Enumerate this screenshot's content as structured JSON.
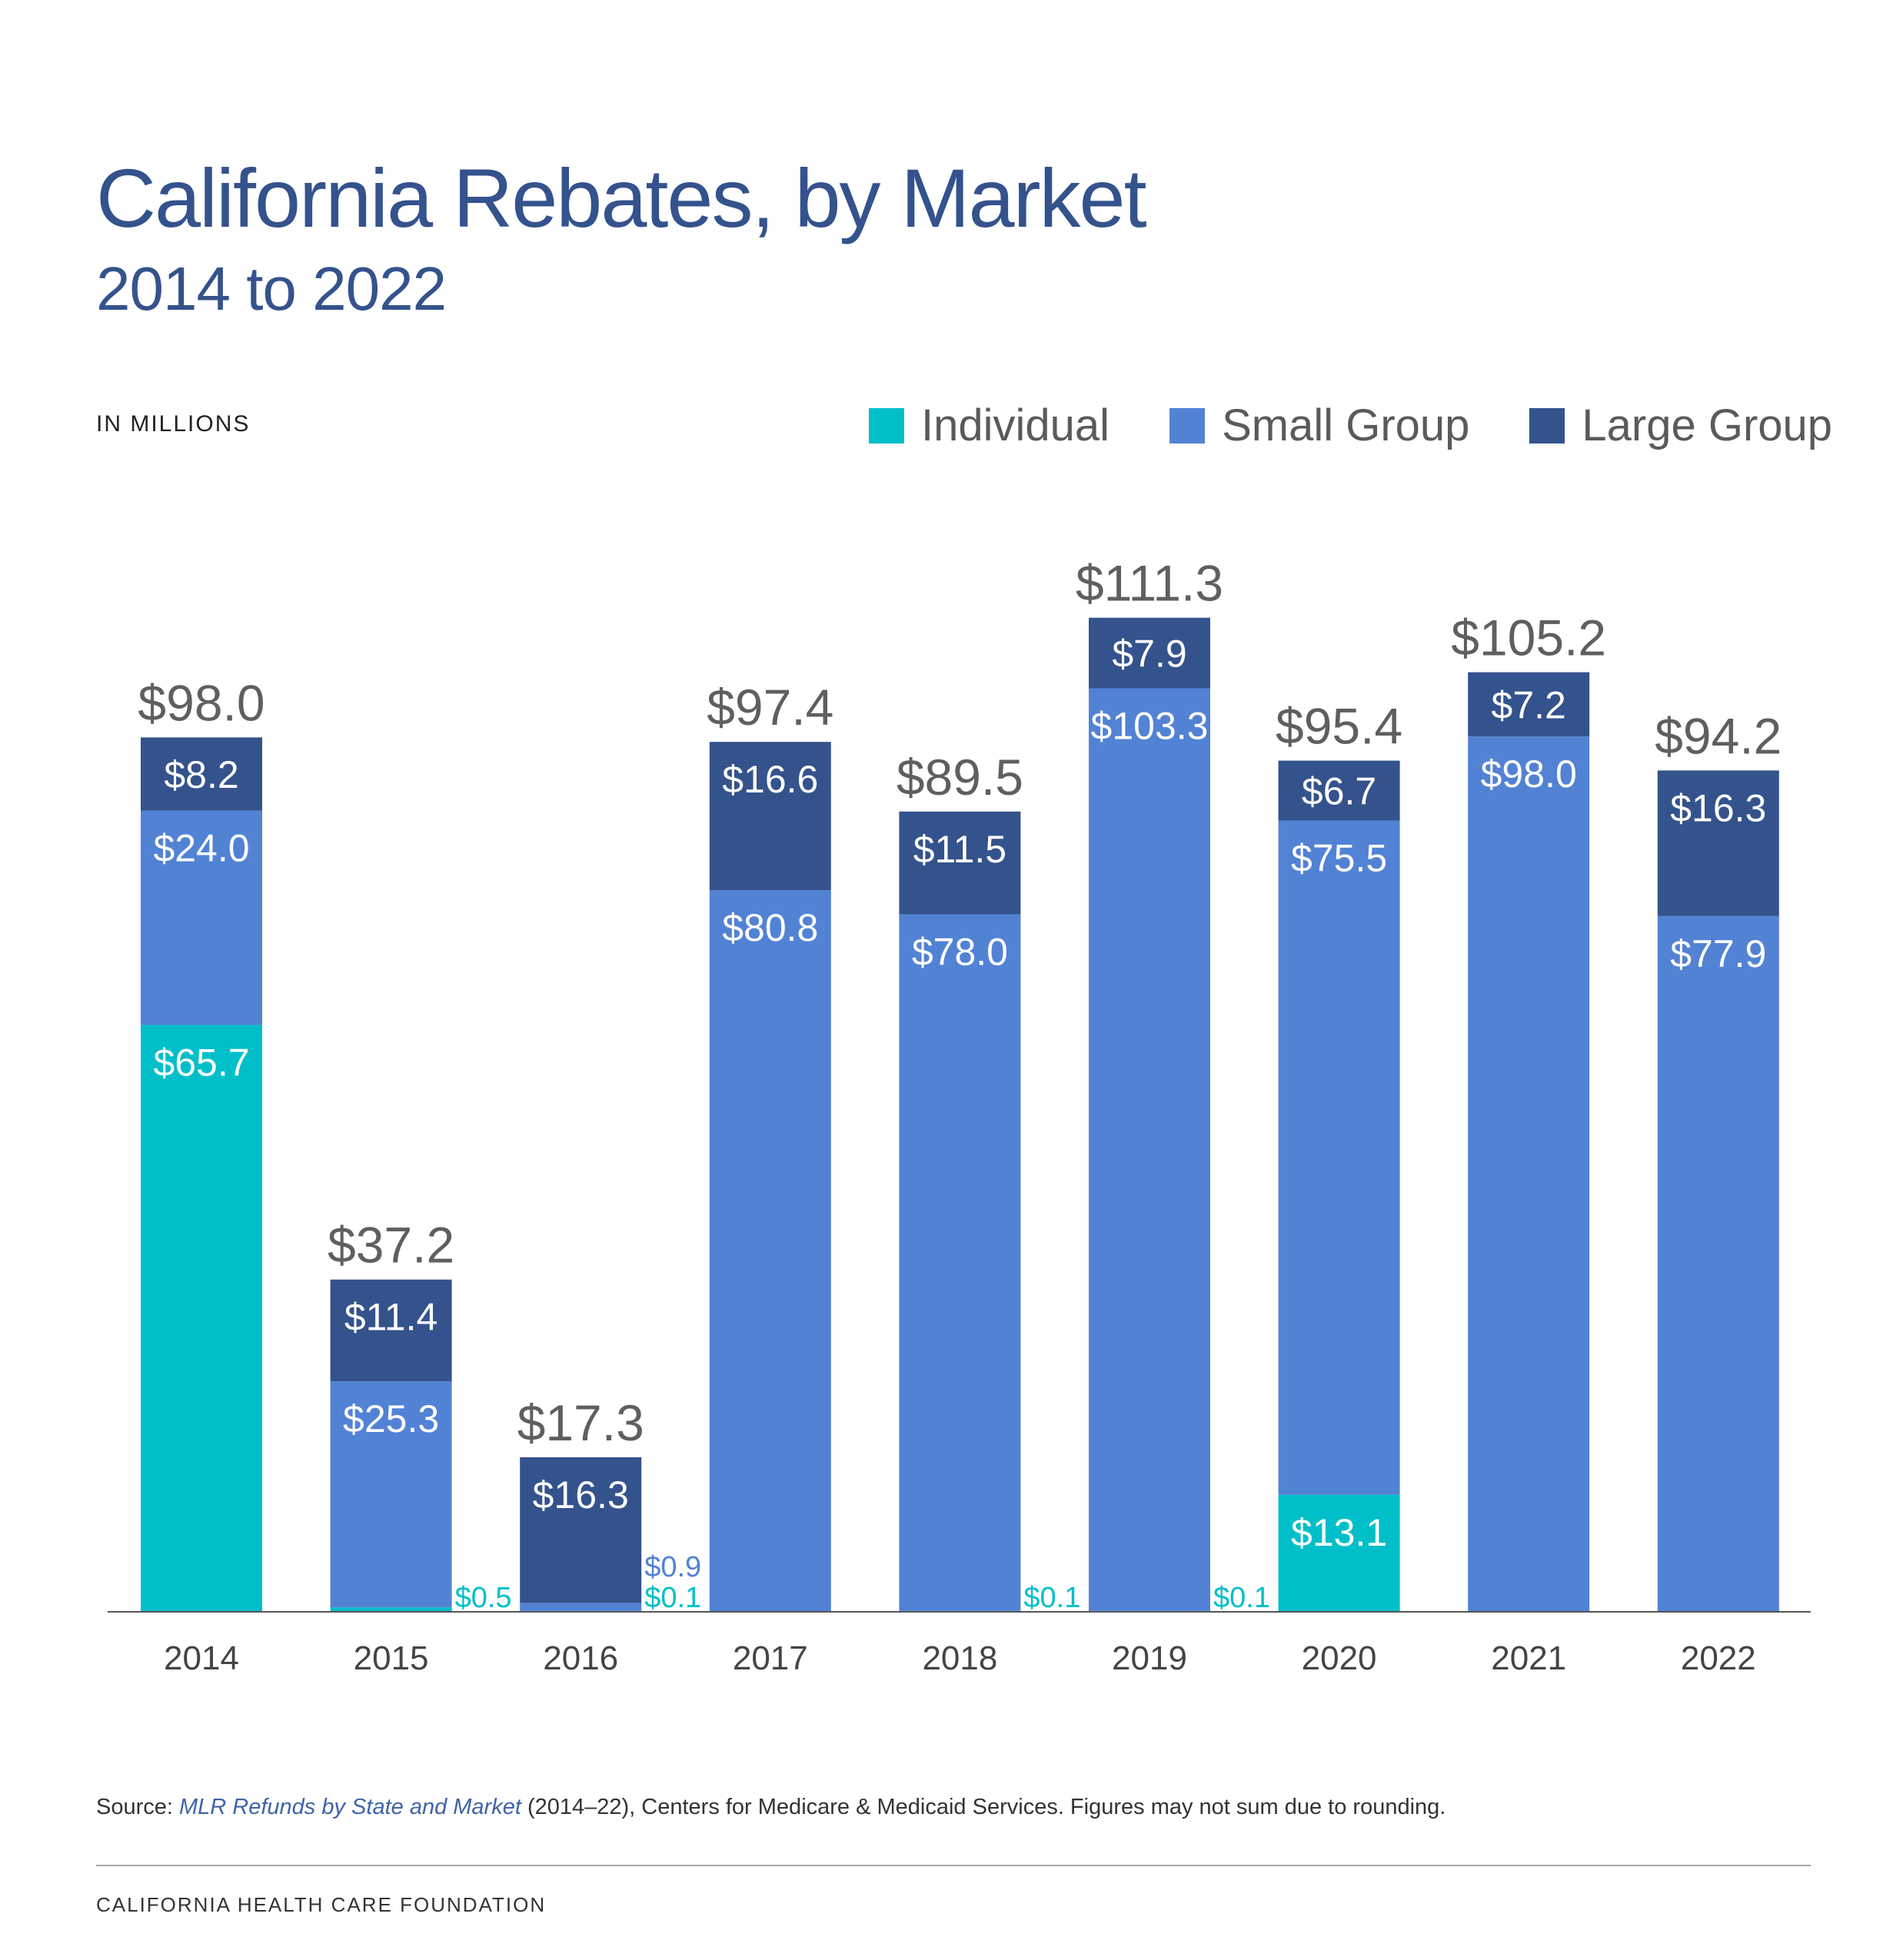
{
  "title": "California Rebates, by Market",
  "subtitle": "2014 to 2022",
  "units_label": "IN MILLIONS",
  "legend": [
    {
      "name": "Individual",
      "color": "#00bfc9"
    },
    {
      "name": "Small Group",
      "color": "#5282d4"
    },
    {
      "name": "Large Group",
      "color": "#34528c"
    }
  ],
  "source": {
    "prefix": "Source: ",
    "citation": "MLR Refunds by State and Market",
    "suffix": " (2014–22), Centers for Medicare & Medicaid Services. Figures may not sum due to rounding."
  },
  "footer": "CALIFORNIA HEALTH CARE FOUNDATION",
  "colors": {
    "individual": "#00bfc9",
    "small_group": "#5282d4",
    "large_group": "#34528c",
    "total_label": "#5f5f5f",
    "axis": "#555555"
  },
  "chart_data": {
    "type": "bar",
    "stacked": true,
    "categories": [
      "2014",
      "2015",
      "2016",
      "2017",
      "2018",
      "2019",
      "2020",
      "2021",
      "2022"
    ],
    "series": [
      {
        "name": "Individual",
        "values": [
          65.7,
          0.5,
          0.1,
          0,
          0.1,
          0.1,
          13.1,
          0,
          0
        ]
      },
      {
        "name": "Small Group",
        "values": [
          24.0,
          25.3,
          0.9,
          80.8,
          78.0,
          103.3,
          75.5,
          98.0,
          77.9
        ]
      },
      {
        "name": "Large Group",
        "values": [
          8.2,
          11.4,
          16.3,
          16.6,
          11.5,
          7.9,
          6.7,
          7.2,
          16.3
        ]
      }
    ],
    "totals": [
      98.0,
      37.2,
      17.3,
      97.4,
      89.5,
      111.3,
      95.4,
      105.2,
      94.2
    ],
    "total_labels": [
      "$98.0",
      "$37.2",
      "$17.3",
      "$97.4",
      "$89.5",
      "$111.3",
      "$95.4",
      "$105.2",
      "$94.2"
    ],
    "segment_labels": [
      [
        "$65.7",
        "$24.0",
        "$8.2"
      ],
      [
        "$0.5",
        "$25.3",
        "$11.4"
      ],
      [
        "$0.1",
        "$0.9",
        "$16.3"
      ],
      [
        "",
        "$80.8",
        "$16.6"
      ],
      [
        "$0.1",
        "$78.0",
        "$11.5"
      ],
      [
        "$0.1",
        "$103.3",
        "$7.9"
      ],
      [
        "$13.1",
        "$75.5",
        "$6.7"
      ],
      [
        "",
        "$98.0",
        "$7.2"
      ],
      [
        "",
        "$77.9",
        "$16.3"
      ]
    ],
    "ylim": [
      0,
      111.3
    ],
    "grid": false,
    "legend_position": "top-right"
  }
}
